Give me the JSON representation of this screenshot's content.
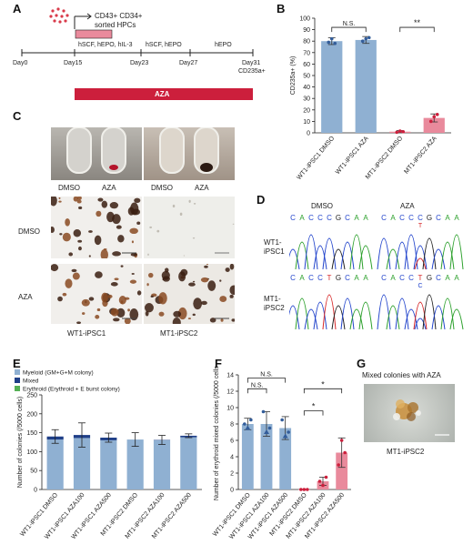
{
  "panels": {
    "a": "A",
    "b": "B",
    "c": "C",
    "d": "D",
    "e": "E",
    "f": "F",
    "g": "G"
  },
  "panelA": {
    "sorted_line1": "CD43+ CD34+",
    "sorted_line2": "sorted HPCs",
    "stage1": "hSCF, hEPO, hIL-3",
    "stage2": "hSCF, hEPO",
    "stage3": "hEPO",
    "days": [
      "Day0",
      "Day15",
      "Day23",
      "Day27",
      "Day31"
    ],
    "final_marker": "CD235a+",
    "aza_bar": "AZA",
    "colors": {
      "stage_box": "#e98a9c",
      "aza_bar": "#cc1f3c",
      "dots": "#d93a4a"
    }
  },
  "panelC": {
    "tube_labels": [
      "DMSO",
      "AZA",
      "DMSO",
      "AZA"
    ],
    "row_labels": [
      "DMSO",
      "AZA"
    ],
    "col_labels": [
      "WT1-iPSC1",
      "MT1-iPSC2"
    ]
  },
  "panelD": {
    "col_labels": [
      "DMSO",
      "AZA"
    ],
    "row_labels": [
      [
        "WT1-",
        "iPSC1"
      ],
      [
        "MT1-",
        "iPSC2"
      ]
    ],
    "seq_wt": "CACCCGCAA",
    "seq_mt": "CACCTGCAA",
    "variant_wt_aza": "T",
    "variant_mt_aza": "C",
    "colors": {
      "C": "#2244cc",
      "A": "#2ca02c",
      "G": "#222222",
      "T": "#d62728"
    }
  },
  "panelG": {
    "title": "Mixed colonies with AZA",
    "caption": "MT1-iPSC2"
  },
  "chart_data": [
    {
      "id": "B",
      "type": "bar",
      "ylabel": "CD235a+ (%)",
      "ylim": [
        0,
        100
      ],
      "yticks": [
        0,
        10,
        20,
        30,
        40,
        50,
        60,
        70,
        80,
        90,
        100
      ],
      "categories": [
        "WT1-iPSC1 DMSO",
        "WT1-iPSC1 AZA",
        "MT1-iPSC2 DMSO",
        "MT1-iPSC2 AZA"
      ],
      "values": [
        80,
        81,
        1,
        13
      ],
      "errors": [
        3,
        3,
        1,
        3.5
      ],
      "points": [
        [
          79,
          82,
          78
        ],
        [
          80,
          82,
          83
        ],
        [
          0.5,
          1.5,
          1
        ],
        [
          10,
          14,
          16
        ]
      ],
      "colors": [
        "#8fb0d2",
        "#8fb0d2",
        "#e98a9c",
        "#e98a9c"
      ],
      "annotations": [
        {
          "text": "N.S.",
          "between": [
            0,
            1
          ],
          "y": 92
        },
        {
          "text": "**",
          "between": [
            2,
            3
          ],
          "y": 92
        }
      ]
    },
    {
      "id": "E",
      "type": "bar",
      "stacked": true,
      "ylabel": "Number of colonies (/5000 cells)",
      "ylim": [
        0,
        250
      ],
      "yticks": [
        0,
        50,
        100,
        150,
        200,
        250
      ],
      "categories": [
        "WT1-iPSC1 DMSO",
        "WT1-iPSC1 AZA100",
        "WT1-iPSC1 AZA500",
        "MT1-iPSC2 DMSO",
        "MT1-iPSC2 AZA100",
        "MT1-iPSC2 AZA500"
      ],
      "series": [
        {
          "name": "Myeloid (GM+G+M colony)",
          "color": "#8fb0d2",
          "values": [
            132,
            136,
            130,
            132,
            130,
            138
          ]
        },
        {
          "name": "Mixed",
          "color": "#1f3f88",
          "values": [
            8,
            8,
            7,
            0,
            1,
            4
          ]
        },
        {
          "name": "Erythroid (Erythroid + E burst colony)",
          "color": "#55b055",
          "values": [
            0,
            0,
            0,
            0,
            0,
            0
          ]
        }
      ],
      "errors": [
        18,
        32,
        12,
        18,
        12,
        5
      ],
      "legend": "top-left"
    },
    {
      "id": "F",
      "type": "bar",
      "ylabel": "Number of erythroid mixed colonies (/5000 cells)",
      "ylim": [
        0,
        14
      ],
      "yticks": [
        0,
        2,
        4,
        6,
        8,
        10,
        12,
        14
      ],
      "categories": [
        "WT1-iPSC1 DMSO",
        "WT1-iPSC1 AZA100",
        "WT1-iPSC1 AZA500",
        "MT1-iPSC2 DMSO",
        "MT1-iPSC2 AZA100",
        "MT1-iPSC2 AZA500"
      ],
      "values": [
        8,
        8,
        7.5,
        0,
        1,
        4.5
      ],
      "errors": [
        0.7,
        1.5,
        1.4,
        0,
        0.5,
        1.8
      ],
      "points": [
        [
          8,
          7.5,
          8.5
        ],
        [
          9.5,
          7,
          7.5
        ],
        [
          8.5,
          6.5,
          7
        ],
        [
          0,
          0,
          0
        ],
        [
          1,
          0.5,
          1.5
        ],
        [
          3,
          6,
          4.5
        ]
      ],
      "colors": [
        "#8fb0d2",
        "#8fb0d2",
        "#8fb0d2",
        "#e98a9c",
        "#e98a9c",
        "#e98a9c"
      ],
      "annotations": [
        {
          "text": "N.S.",
          "between": [
            0,
            1
          ],
          "y": 12.3
        },
        {
          "text": "N.S.",
          "between": [
            0,
            2
          ],
          "y": 13.6
        },
        {
          "text": "*",
          "between": [
            3,
            4
          ],
          "y": 9.6
        },
        {
          "text": "*",
          "between": [
            3,
            5
          ],
          "y": 12.3
        }
      ]
    }
  ]
}
